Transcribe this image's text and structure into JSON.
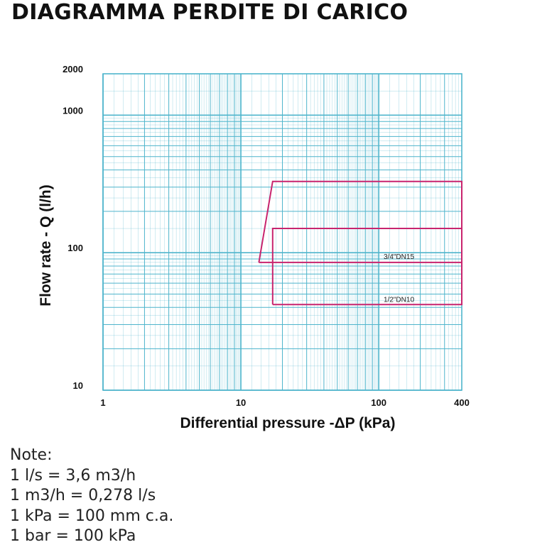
{
  "page": {
    "title": "DIAGRAMMA PERDITE DI CARICO"
  },
  "chart_data": {
    "type": "line",
    "x_scale": "log",
    "y_scale": "log",
    "xlim": [
      1,
      400
    ],
    "ylim": [
      10,
      2000
    ],
    "xlabel": "Differential pressure -ΔP (kPa)",
    "ylabel": "Flow rate - Q (l/h)",
    "x_ticks": [
      {
        "value": 1,
        "label": "1"
      },
      {
        "value": 10,
        "label": "10"
      },
      {
        "value": 100,
        "label": "100"
      },
      {
        "value": 400,
        "label": "400"
      }
    ],
    "y_ticks": [
      {
        "value": 10,
        "label": "10"
      },
      {
        "value": 100,
        "label": "100"
      },
      {
        "value": 1000,
        "label": "1000"
      },
      {
        "value": 2000,
        "label": "2000"
      }
    ],
    "grid": true,
    "series": [
      {
        "name": "3/4\"DN15",
        "label_at": [
          140,
          90
        ],
        "points": [
          [
            13.5,
            85
          ],
          [
            17,
            330
          ],
          [
            400,
            330
          ],
          [
            400,
            85
          ],
          [
            13.5,
            85
          ]
        ]
      },
      {
        "name": "1/2\"DN10",
        "label_at": [
          140,
          44
        ],
        "points": [
          [
            17,
            42
          ],
          [
            17,
            150
          ],
          [
            400,
            150
          ],
          [
            400,
            42
          ],
          [
            17,
            42
          ]
        ]
      }
    ],
    "colors": {
      "grid": "#4fb5cc",
      "series": "#c8246e",
      "background": "#ffffff"
    }
  },
  "notes": {
    "heading": "Note:",
    "lines": [
      "1 l/s = 3,6 m3/h",
      "1 m3/h = 0,278 l/s",
      "1 kPa = 100 mm c.a.",
      "1 bar = 100 kPa"
    ]
  }
}
